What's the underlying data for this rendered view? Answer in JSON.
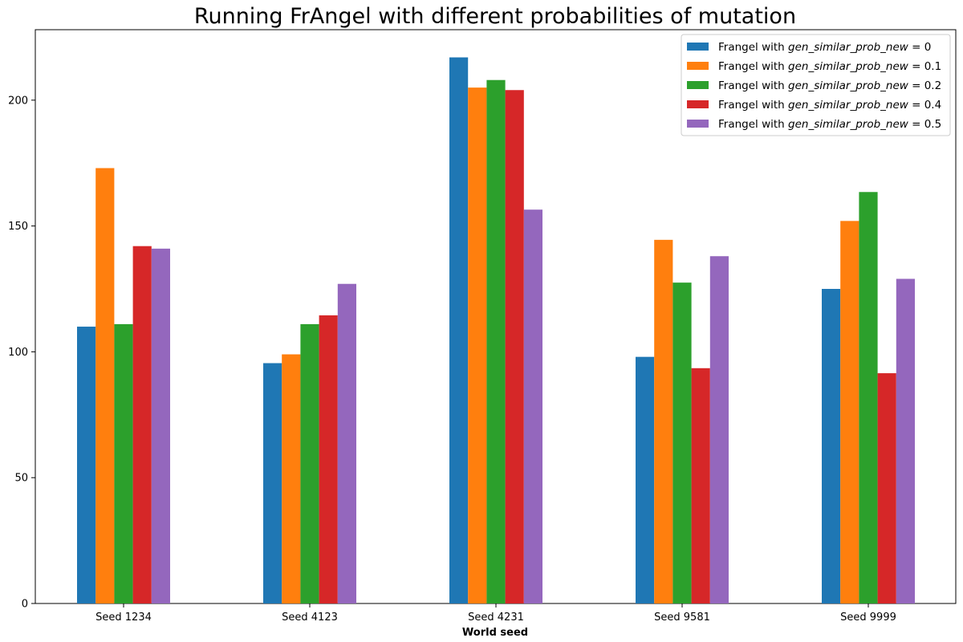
{
  "chart_data": {
    "type": "bar",
    "title": "Running FrAngel with different probabilities of mutation",
    "xlabel": "World seed",
    "ylabel": "",
    "categories": [
      "Seed 1234",
      "Seed 4123",
      "Seed 4231",
      "Seed 9581",
      "Seed 9999"
    ],
    "ylim": [
      0,
      228
    ],
    "yticks": [
      0,
      50,
      100,
      150,
      200
    ],
    "grid": false,
    "legend_position": "top-right",
    "series": [
      {
        "legend_prefix": "Frangel with ",
        "legend_var": "gen_similar_prob_new",
        "legend_suffix": " = 0",
        "color": "#1f77b4",
        "values": [
          110,
          95.5,
          217,
          98,
          125
        ]
      },
      {
        "legend_prefix": "Frangel with ",
        "legend_var": "gen_similar_prob_new",
        "legend_suffix": " = 0.1",
        "color": "#ff7f0e",
        "values": [
          173,
          99,
          205,
          144.5,
          152
        ]
      },
      {
        "legend_prefix": "Frangel with ",
        "legend_var": "gen_similar_prob_new",
        "legend_suffix": " = 0.2",
        "color": "#2ca02c",
        "values": [
          111,
          111,
          208,
          127.5,
          163.5
        ]
      },
      {
        "legend_prefix": "Frangel with ",
        "legend_var": "gen_similar_prob_new",
        "legend_suffix": " = 0.4",
        "color": "#d62728",
        "values": [
          142,
          114.5,
          204,
          93.5,
          91.5
        ]
      },
      {
        "legend_prefix": "Frangel with ",
        "legend_var": "gen_similar_prob_new",
        "legend_suffix": " = 0.5",
        "color": "#9467bd",
        "values": [
          141,
          127,
          156.5,
          138,
          129
        ]
      }
    ]
  }
}
